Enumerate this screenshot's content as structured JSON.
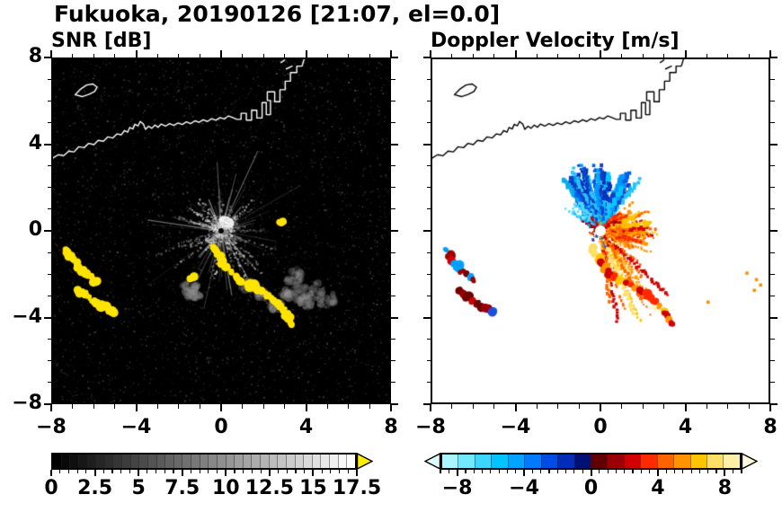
{
  "header": {
    "title": "Fukuoka, 20190126 [21:07, el=0.0]"
  },
  "chart_data": [
    {
      "type": "heatmap",
      "title": "SNR [dB]",
      "xlim": [
        -8,
        8
      ],
      "ylim": [
        -8,
        8
      ],
      "xtick_values": [
        -8,
        -4,
        0,
        4,
        8
      ],
      "xtick_labels": [
        "−8",
        "−4",
        "0",
        "4",
        "8"
      ],
      "ytick_values": [
        8,
        4,
        0,
        -4,
        -8
      ],
      "ytick_labels": [
        "8",
        "4",
        "0",
        "−4",
        "−8"
      ],
      "minor_tick_step": 1,
      "background_color": "#000000",
      "colorbar": {
        "min": 0,
        "max": 17.5,
        "steps": 35,
        "tick_values": [
          0,
          2.5,
          5,
          7.5,
          10,
          12.5,
          15,
          17.5
        ],
        "tick_labels": [
          "0",
          "2.5",
          "5",
          "7.5",
          "10",
          "12.5",
          "15",
          "17.5"
        ],
        "minor_tick_step": 0.5,
        "gradient": [
          "#000000",
          "#ffffff"
        ],
        "over_arrow_color": "#ffee00"
      },
      "features": {
        "radar_center": [
          0,
          0
        ],
        "coastline_color": "#ffffff",
        "echo_color": "#ffe400",
        "cloud_color": "#969696",
        "echo_chains": [
          [
            [
              -7.35,
              -0.9
            ],
            [
              -7.2,
              -1.12
            ],
            [
              -7.05,
              -1.32
            ],
            [
              -6.93,
              -1.52
            ],
            [
              -6.78,
              -1.7
            ],
            [
              -6.6,
              -1.86
            ],
            [
              -6.4,
              -2.0
            ],
            [
              -6.18,
              -2.15
            ],
            [
              -6.0,
              -2.3
            ]
          ],
          [
            [
              -6.7,
              -2.8
            ],
            [
              -6.5,
              -2.95
            ],
            [
              -6.3,
              -3.1
            ],
            [
              -6.08,
              -3.25
            ],
            [
              -5.86,
              -3.38
            ],
            [
              -5.64,
              -3.5
            ],
            [
              -5.4,
              -3.62
            ],
            [
              -5.16,
              -3.76
            ]
          ],
          [
            [
              -0.4,
              -0.85
            ],
            [
              -0.22,
              -1.05
            ],
            [
              -0.08,
              -1.28
            ],
            [
              0.08,
              -1.5
            ],
            [
              0.25,
              -1.72
            ],
            [
              0.45,
              -1.95
            ],
            [
              0.68,
              -2.12
            ]
          ],
          [
            [
              0.95,
              -2.3
            ],
            [
              1.2,
              -2.45
            ],
            [
              1.45,
              -2.58
            ],
            [
              1.7,
              -2.7
            ],
            [
              1.95,
              -2.82
            ]
          ],
          [
            [
              2.2,
              -3.0
            ],
            [
              2.42,
              -3.16
            ],
            [
              2.62,
              -3.32
            ],
            [
              2.8,
              -3.5
            ],
            [
              2.98,
              -3.7
            ],
            [
              3.12,
              -3.9
            ],
            [
              3.26,
              -4.1
            ],
            [
              3.38,
              -4.3
            ]
          ],
          [
            [
              2.78,
              0.42
            ],
            [
              2.95,
              0.38
            ]
          ],
          [
            [
              -1.35,
              -2.12
            ]
          ]
        ],
        "clouds": [
          [
            3.6,
            -2.2,
            0.55
          ],
          [
            4.3,
            -2.8,
            0.6
          ],
          [
            5.0,
            -3.2,
            0.5
          ],
          [
            4.0,
            -3.3,
            0.45
          ],
          [
            3.3,
            -2.9,
            0.4
          ],
          [
            -1.55,
            -2.6,
            0.4
          ],
          [
            -1.3,
            -3.0,
            0.35
          ],
          [
            1.3,
            -2.6,
            0.35
          ],
          [
            2.0,
            -3.0,
            0.3
          ],
          [
            2.6,
            -3.5,
            0.3
          ]
        ]
      }
    },
    {
      "type": "heatmap",
      "title": "Doppler Velocity [m/s]",
      "xlim": [
        -8,
        8
      ],
      "ylim": [
        -8,
        8
      ],
      "xtick_values": [
        -8,
        -4,
        0,
        4,
        8
      ],
      "xtick_labels": [
        "−8",
        "−4",
        "0",
        "4",
        "8"
      ],
      "ytick_values": [
        8,
        4,
        0,
        -4,
        -8
      ],
      "ytick_labels": [
        "8",
        "4",
        "0",
        "−4",
        "−8"
      ],
      "minor_tick_step": 1,
      "background_color": "#ffffff",
      "colorbar": {
        "min": -9,
        "max": 9,
        "tick_values": [
          -8,
          -4,
          0,
          4,
          8
        ],
        "tick_labels": [
          "−8",
          "−4",
          "0",
          "4",
          "8"
        ],
        "minor_tick_step": 0.5,
        "colors": [
          "#aaf5ff",
          "#73e9ff",
          "#3cd7ff",
          "#00c3ff",
          "#00a3ff",
          "#007bff",
          "#004ce6",
          "#002db9",
          "#001173",
          "#600000",
          "#9c0000",
          "#d00000",
          "#ff2a00",
          "#ff6300",
          "#ff9400",
          "#ffc400",
          "#ffdf66",
          "#fff0a8"
        ],
        "under_arrow_color": "#dcfbff",
        "over_arrow_color": "#fffbdc"
      },
      "features": {
        "radar_center": [
          0,
          0
        ],
        "coastline_color": "#000000",
        "fans": [
          {
            "name": "toward-fan-up",
            "angle_deg": [
              52,
              128
            ],
            "length": [
              0.35,
              3.4
            ],
            "widths": [
              2.5,
              5.5
            ],
            "count": 150,
            "colors": [
              "#00c8ff",
              "#0098ff",
              "#0060e8",
              "#0034bc",
              "#2cc4ff",
              "#123fc8",
              "#00b0f0"
            ]
          },
          {
            "name": "toward-fan-upleft",
            "angle_deg": [
              126,
              148
            ],
            "length": [
              0.3,
              2.0
            ],
            "widths": [
              2,
              4
            ],
            "count": 30,
            "colors": [
              "#55d8ff",
              "#00aaff",
              "#0070e8"
            ]
          },
          {
            "name": "away-fan-right-inner",
            "angle_deg": [
              -35,
              48
            ],
            "length": [
              0.25,
              1.25
            ],
            "widths": [
              2.5,
              5
            ],
            "count": 80,
            "colors": [
              "#9c0000",
              "#d00000",
              "#ff2a00",
              "#700000"
            ]
          },
          {
            "name": "away-fan-right-outer",
            "angle_deg": [
              -30,
              42
            ],
            "length": [
              0.8,
              2.7
            ],
            "widths": [
              2,
              4.5
            ],
            "count": 85,
            "colors": [
              "#ff6300",
              "#ff9400",
              "#ff2a00",
              "#ffc400",
              "#d00000"
            ]
          },
          {
            "name": "away-fan-downright",
            "angle_deg": [
              -84,
              -32
            ],
            "length": [
              0.5,
              4.8
            ],
            "widths": [
              1.8,
              3.6
            ],
            "count": 55,
            "colors": [
              "#ff9400",
              "#ffc400",
              "#ffdf66",
              "#ff6300",
              "#d00000",
              "#fff0a8"
            ]
          },
          {
            "name": "near-center-noise",
            "angle_deg": [
              0,
              360
            ],
            "length": [
              0.12,
              1.0
            ],
            "widths": [
              1.5,
              3
            ],
            "count": 40,
            "colors": [
              "#d00000",
              "#0060e8",
              "#ff9400",
              "#00c8ff",
              "#9c0000"
            ]
          }
        ],
        "echo_chain_colors_left": [
          "#700000",
          "#700000",
          "#9c0000",
          "#d00000",
          "#1a50dc",
          "#00a0ff"
        ],
        "echo_chain_colors_tail": [
          "#ff9400",
          "#d00000",
          "#ffc400",
          "#ffdf66",
          "#ff2a00"
        ],
        "specks": [
          [
            7.35,
            -2.2
          ],
          [
            7.55,
            -2.45
          ],
          [
            7.25,
            -2.7
          ],
          [
            5.05,
            -3.25
          ],
          [
            6.9,
            -1.9
          ]
        ],
        "speck_color": "#ff8a00"
      }
    }
  ],
  "coastline": {
    "stroke_width": 1.4,
    "main": [
      [
        -8,
        3.4
      ],
      [
        -7.75,
        3.55
      ],
      [
        -7.5,
        3.5
      ],
      [
        -7.25,
        3.72
      ],
      [
        -7.0,
        3.68
      ],
      [
        -6.78,
        3.92
      ],
      [
        -6.52,
        3.88
      ],
      [
        -6.3,
        4.08
      ],
      [
        -6.05,
        4.02
      ],
      [
        -5.85,
        4.22
      ],
      [
        -5.6,
        4.18
      ],
      [
        -5.4,
        4.38
      ],
      [
        -5.15,
        4.33
      ],
      [
        -4.95,
        4.52
      ],
      [
        -4.75,
        4.48
      ],
      [
        -4.6,
        4.68
      ],
      [
        -4.45,
        4.6
      ],
      [
        -4.35,
        4.82
      ],
      [
        -4.2,
        4.75
      ],
      [
        -4.1,
        4.97
      ],
      [
        -3.95,
        4.9
      ],
      [
        -3.85,
        5.1
      ],
      [
        -3.7,
        4.98
      ],
      [
        -3.6,
        4.73
      ],
      [
        -3.45,
        4.88
      ],
      [
        -3.3,
        4.78
      ],
      [
        -3.15,
        4.93
      ],
      [
        -3.0,
        4.83
      ],
      [
        -2.85,
        4.98
      ],
      [
        -2.65,
        4.88
      ],
      [
        -2.45,
        5.0
      ],
      [
        -2.25,
        4.92
      ],
      [
        -2.05,
        5.03
      ],
      [
        -1.85,
        4.96
      ],
      [
        -1.65,
        5.08
      ],
      [
        -1.45,
        5.0
      ],
      [
        -1.25,
        5.13
      ],
      [
        -1.05,
        5.06
      ],
      [
        -0.85,
        5.18
      ],
      [
        -0.65,
        5.1
      ],
      [
        -0.45,
        5.23
      ],
      [
        -0.25,
        5.16
      ],
      [
        -0.05,
        5.28
      ],
      [
        0.15,
        5.22
      ],
      [
        0.35,
        5.36
      ],
      [
        0.55,
        5.28
      ],
      [
        0.75,
        5.2
      ],
      [
        0.95,
        5.2
      ],
      [
        0.95,
        5.48
      ],
      [
        1.2,
        5.48
      ],
      [
        1.2,
        5.16
      ],
      [
        1.45,
        5.16
      ],
      [
        1.45,
        5.62
      ],
      [
        1.7,
        5.62
      ],
      [
        1.7,
        5.26
      ],
      [
        1.95,
        5.26
      ],
      [
        1.95,
        5.98
      ],
      [
        2.15,
        5.98
      ],
      [
        2.15,
        5.42
      ],
      [
        2.35,
        5.42
      ],
      [
        2.35,
        6.08
      ],
      [
        2.2,
        6.08
      ],
      [
        2.2,
        6.48
      ],
      [
        2.55,
        6.48
      ],
      [
        2.55,
        6.02
      ],
      [
        2.8,
        6.02
      ],
      [
        2.8,
        6.58
      ],
      [
        3.05,
        6.58
      ],
      [
        3.05,
        6.98
      ],
      [
        3.3,
        6.98
      ],
      [
        3.3,
        7.38
      ],
      [
        3.6,
        7.38
      ],
      [
        3.6,
        7.68
      ],
      [
        3.85,
        7.68
      ],
      [
        3.95,
        8.0
      ]
    ],
    "island": [
      [
        -6.95,
        6.35
      ],
      [
        -6.7,
        6.6
      ],
      [
        -6.4,
        6.8
      ],
      [
        -6.1,
        6.85
      ],
      [
        -5.9,
        6.7
      ],
      [
        -6.02,
        6.5
      ],
      [
        -6.3,
        6.36
      ],
      [
        -6.62,
        6.26
      ],
      [
        -6.95,
        6.35
      ]
    ],
    "islets": [
      [
        [
          3.1,
          7.55
        ],
        [
          3.38,
          7.68
        ]
      ],
      [
        [
          2.85,
          7.85
        ],
        [
          3.02,
          7.96
        ]
      ]
    ]
  }
}
